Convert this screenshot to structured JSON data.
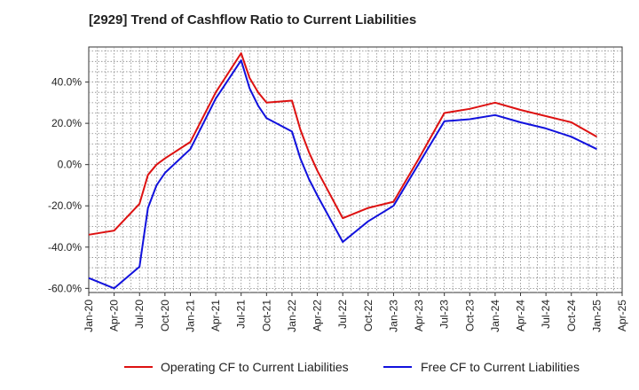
{
  "chart_data": {
    "type": "line",
    "title": "[2929]  Trend of Cashflow Ratio to Current Liabilities",
    "xlabel": "",
    "ylabel": "",
    "ylim": [
      -62,
      57
    ],
    "yticks": [
      40,
      20,
      0,
      -20,
      -40,
      -60
    ],
    "ytick_labels": [
      "40.0%",
      "20.0%",
      "0.0%",
      "-20.0%",
      "-40.0%",
      "-60.0%"
    ],
    "x_categories": [
      "Jan-20",
      "Apr-20",
      "Jul-20",
      "Oct-20",
      "Jan-21",
      "Apr-21",
      "Jul-21",
      "Oct-21",
      "Jan-22",
      "Apr-22",
      "Jul-22",
      "Oct-22",
      "Jan-23",
      "Apr-23",
      "Jul-23",
      "Oct-23",
      "Jan-24",
      "Apr-24",
      "Jul-24",
      "Oct-24",
      "Jan-25",
      "Apr-25"
    ],
    "grid": true,
    "legend_position": "bottom",
    "series": [
      {
        "name": "Operating CF to Current Liabilities",
        "color": "#dd1111",
        "points": [
          [
            0,
            -34
          ],
          [
            1,
            -32
          ],
          [
            2,
            -19
          ],
          [
            2.33,
            -5
          ],
          [
            2.67,
            0
          ],
          [
            3,
            3
          ],
          [
            4,
            11
          ],
          [
            5,
            35
          ],
          [
            6,
            54
          ],
          [
            6.33,
            42
          ],
          [
            6.67,
            35
          ],
          [
            7,
            30
          ],
          [
            8,
            31
          ],
          [
            8.33,
            17
          ],
          [
            8.67,
            6
          ],
          [
            9,
            -3
          ],
          [
            10,
            -26
          ],
          [
            11,
            -21
          ],
          [
            12,
            -18
          ],
          [
            13,
            3
          ],
          [
            14,
            25
          ],
          [
            15,
            27
          ],
          [
            16,
            30
          ],
          [
            17,
            26.5
          ],
          [
            18,
            23.5
          ],
          [
            19,
            20.5
          ],
          [
            20,
            13.5
          ]
        ]
      },
      {
        "name": "Free CF to Current Liabilities",
        "color": "#1111dd",
        "points": [
          [
            0,
            -55
          ],
          [
            1,
            -60
          ],
          [
            2,
            -49.5
          ],
          [
            2.33,
            -21
          ],
          [
            2.67,
            -10
          ],
          [
            3,
            -4
          ],
          [
            4,
            7.5
          ],
          [
            5,
            32
          ],
          [
            6,
            50.5
          ],
          [
            6.33,
            37
          ],
          [
            6.67,
            28.5
          ],
          [
            7,
            22.5
          ],
          [
            8,
            16
          ],
          [
            8.33,
            3
          ],
          [
            8.67,
            -7
          ],
          [
            9,
            -15
          ],
          [
            10,
            -37.5
          ],
          [
            11,
            -27.5
          ],
          [
            12,
            -20
          ],
          [
            13,
            0.5
          ],
          [
            14,
            21
          ],
          [
            15,
            22
          ],
          [
            16,
            24
          ],
          [
            17,
            20.5
          ],
          [
            18,
            17.5
          ],
          [
            19,
            13.5
          ],
          [
            20,
            7.5
          ]
        ]
      }
    ]
  }
}
